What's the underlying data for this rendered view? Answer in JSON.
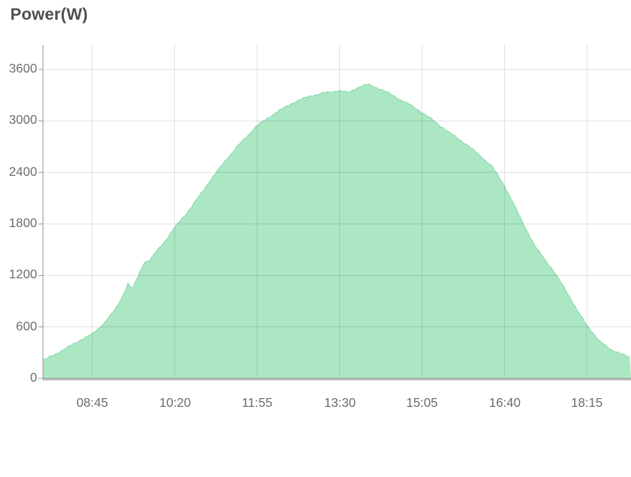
{
  "title": "Power(W)",
  "colors": {
    "fill": "#abe7c3",
    "line": "#8fdcb0",
    "grid": "rgba(0,0,0,0.11)",
    "axis": "#9a9a9a",
    "axis_shadow": "#d4d4d4",
    "tick_label": "#6b6b6b",
    "title_text": "#4f4f4f",
    "background": "#ffffff"
  },
  "chart_data": {
    "type": "area",
    "title": "Power(W)",
    "xlabel": "",
    "ylabel": "",
    "grid": true,
    "legend": "none",
    "ylim": [
      0,
      3900
    ],
    "y_tick_labels": [
      "0",
      "600",
      "1200",
      "1800",
      "2400",
      "3000",
      "3600"
    ],
    "x_tick_labels": [
      "08:45",
      "10:20",
      "11:55",
      "13:30",
      "15:05",
      "16:40",
      "18:15"
    ],
    "x_tick_interval_minutes": 95,
    "series": [
      {
        "name": "power",
        "points": [
          [
            "07:48",
            210
          ],
          [
            "08:00",
            275
          ],
          [
            "08:15",
            355
          ],
          [
            "08:30",
            445
          ],
          [
            "08:45",
            520
          ],
          [
            "09:00",
            660
          ],
          [
            "09:12",
            810
          ],
          [
            "09:22",
            1000
          ],
          [
            "09:26",
            1105
          ],
          [
            "09:31",
            1030
          ],
          [
            "09:40",
            1240
          ],
          [
            "09:45",
            1355
          ],
          [
            "09:51",
            1365
          ],
          [
            "10:00",
            1490
          ],
          [
            "10:10",
            1610
          ],
          [
            "10:20",
            1750
          ],
          [
            "10:40",
            2000
          ],
          [
            "11:00",
            2290
          ],
          [
            "11:20",
            2560
          ],
          [
            "11:40",
            2790
          ],
          [
            "11:55",
            2950
          ],
          [
            "12:15",
            3090
          ],
          [
            "12:35",
            3210
          ],
          [
            "12:55",
            3290
          ],
          [
            "13:15",
            3330
          ],
          [
            "13:30",
            3350
          ],
          [
            "13:40",
            3325
          ],
          [
            "13:52",
            3390
          ],
          [
            "14:03",
            3420
          ],
          [
            "14:15",
            3375
          ],
          [
            "14:30",
            3300
          ],
          [
            "14:50",
            3190
          ],
          [
            "15:05",
            3100
          ],
          [
            "15:20",
            2990
          ],
          [
            "15:36",
            2870
          ],
          [
            "15:55",
            2740
          ],
          [
            "16:12",
            2600
          ],
          [
            "16:26",
            2470
          ],
          [
            "16:40",
            2250
          ],
          [
            "16:58",
            1880
          ],
          [
            "17:15",
            1540
          ],
          [
            "17:33",
            1300
          ],
          [
            "17:51",
            1020
          ],
          [
            "18:06",
            750
          ],
          [
            "18:15",
            620
          ],
          [
            "18:29",
            430
          ],
          [
            "18:44",
            330
          ],
          [
            "18:56",
            275
          ],
          [
            "19:06",
            245
          ]
        ]
      }
    ]
  }
}
